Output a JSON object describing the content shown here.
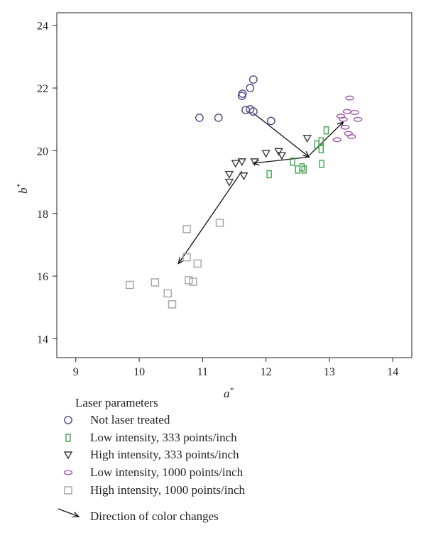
{
  "chart_data": {
    "type": "scatter",
    "xlabel": {
      "base": "a",
      "sup": "*"
    },
    "ylabel": {
      "base": "b",
      "sup": "*"
    },
    "xlim": [
      8.7,
      14.3
    ],
    "ylim": [
      13.4,
      24.4
    ],
    "xticks": [
      "9",
      "10",
      "11",
      "12",
      "13",
      "14"
    ],
    "yticks": [
      "14",
      "16",
      "18",
      "20",
      "22",
      "24"
    ],
    "grid": false,
    "legend_title": "Laser parameters",
    "series": [
      {
        "name": "Not laser treated",
        "marker": "circle",
        "color": "#4b4a86",
        "points": [
          [
            10.95,
            21.05
          ],
          [
            11.25,
            21.05
          ],
          [
            11.62,
            21.75
          ],
          [
            11.63,
            21.82
          ],
          [
            11.75,
            22.0
          ],
          [
            11.8,
            22.27
          ],
          [
            11.68,
            21.3
          ],
          [
            11.75,
            21.32
          ],
          [
            11.8,
            21.25
          ],
          [
            12.08,
            20.95
          ]
        ]
      },
      {
        "name": "Low intensity, 333 points/inch",
        "marker": "rect-tall",
        "color": "#3fa34d",
        "points": [
          [
            12.05,
            19.25
          ],
          [
            12.42,
            19.65
          ],
          [
            12.5,
            19.4
          ],
          [
            12.57,
            19.47
          ],
          [
            12.6,
            19.4
          ],
          [
            12.8,
            20.2
          ],
          [
            12.87,
            20.3
          ],
          [
            12.87,
            20.05
          ],
          [
            12.88,
            19.58
          ],
          [
            12.95,
            20.65
          ]
        ]
      },
      {
        "name": "High intensity, 333 points/inch",
        "marker": "triangle-down",
        "color": "#3a3a3a",
        "points": [
          [
            11.42,
            19.25
          ],
          [
            11.42,
            19.0
          ],
          [
            11.52,
            19.6
          ],
          [
            11.62,
            19.65
          ],
          [
            11.65,
            19.2
          ],
          [
            11.82,
            19.65
          ],
          [
            12.0,
            19.92
          ],
          [
            12.2,
            19.98
          ],
          [
            12.25,
            19.85
          ],
          [
            12.65,
            20.4
          ]
        ]
      },
      {
        "name": "Low intensity, 1000 points/inch",
        "marker": "ellipse",
        "color": "#9a5aa5",
        "points": [
          [
            13.12,
            20.35
          ],
          [
            13.18,
            21.1
          ],
          [
            13.22,
            21.0
          ],
          [
            13.25,
            20.75
          ],
          [
            13.28,
            21.25
          ],
          [
            13.3,
            20.55
          ],
          [
            13.32,
            21.68
          ],
          [
            13.35,
            20.45
          ],
          [
            13.4,
            21.22
          ],
          [
            13.45,
            21.0
          ]
        ]
      },
      {
        "name": "High intensity, 1000 points/inch",
        "marker": "square",
        "color": "#a3a3a3",
        "points": [
          [
            9.85,
            15.72
          ],
          [
            10.25,
            15.8
          ],
          [
            10.45,
            15.45
          ],
          [
            10.52,
            15.1
          ],
          [
            10.75,
            17.5
          ],
          [
            10.75,
            16.6
          ],
          [
            10.78,
            15.87
          ],
          [
            10.85,
            15.82
          ],
          [
            10.92,
            16.4
          ],
          [
            11.27,
            17.7
          ]
        ]
      }
    ],
    "arrows": {
      "name": "Direction of color changes",
      "color": "#111111",
      "segments": [
        [
          [
            11.8,
            21.2
          ],
          [
            12.68,
            19.8
          ]
        ],
        [
          [
            12.68,
            19.8
          ],
          [
            11.8,
            19.6
          ]
        ],
        [
          [
            11.62,
            19.35
          ],
          [
            10.62,
            16.4
          ]
        ],
        [
          [
            12.68,
            19.85
          ],
          [
            13.22,
            20.92
          ]
        ]
      ]
    }
  }
}
